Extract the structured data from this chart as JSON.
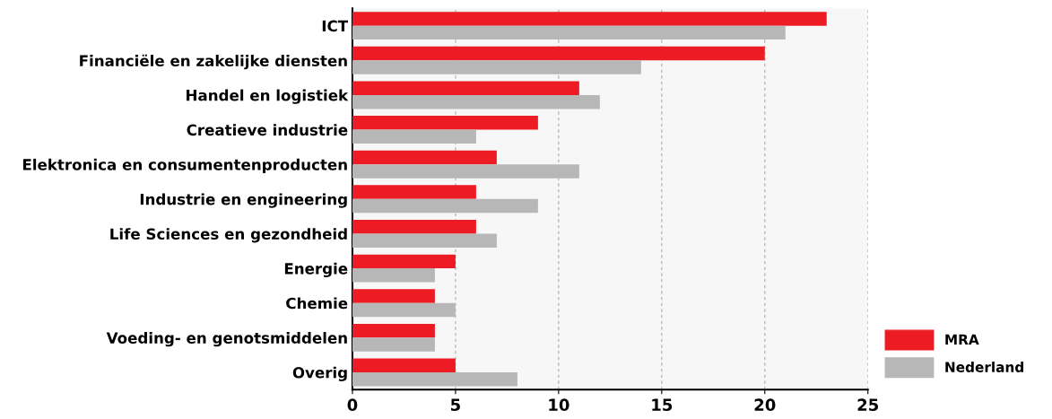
{
  "chart_data": {
    "type": "bar",
    "orientation": "horizontal",
    "categories": [
      "ICT",
      "Financiële en zakelijke diensten",
      "Handel en logistiek",
      "Creatieve industrie",
      "Elektronica en consumentenproducten",
      "Industrie en engineering",
      "Life Sciences en gezondheid",
      "Energie",
      "Chemie",
      "Voeding- en genotsmiddelen",
      "Overig"
    ],
    "series": [
      {
        "name": "MRA",
        "color": "#ed1c24",
        "values": [
          23,
          20,
          11,
          9,
          7,
          6,
          6,
          5,
          4,
          4,
          5
        ]
      },
      {
        "name": "Nederland",
        "color": "#b7b7b7",
        "values": [
          21,
          14,
          12,
          6,
          11,
          9,
          7,
          4,
          5,
          4,
          8
        ]
      }
    ],
    "xlim": [
      0,
      25
    ],
    "xticks": [
      0,
      5,
      10,
      15,
      20,
      25
    ],
    "grid": "x",
    "legend": "bottom right"
  }
}
